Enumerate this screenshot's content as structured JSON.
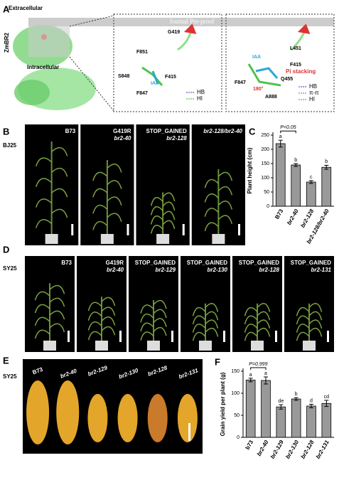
{
  "panel_a": {
    "label": "A",
    "protein": "ZmBR2",
    "extracellular": "Extracellular",
    "intracellular": "Intracellular",
    "watermark": "Journal Pre-proof",
    "left_box": {
      "residues": [
        "G419",
        "F851",
        "S848",
        "F415",
        "F847"
      ],
      "ligand": "IAA",
      "legend": [
        "HB",
        "HI"
      ]
    },
    "right_box": {
      "residues": [
        "L451",
        "F415",
        "Q455",
        "F847",
        "A888"
      ],
      "ligand": "IAA",
      "interaction": "Pi stacking",
      "angle": "180°",
      "legend": [
        "HB",
        "π-π",
        "HI"
      ]
    }
  },
  "panel_b": {
    "label": "B",
    "site": "BJ25",
    "images": [
      [
        "B73"
      ],
      [
        "G419R",
        "br2-40"
      ],
      [
        "STOP_GAINED",
        "br2-128"
      ],
      [
        "br2-128/br2-40"
      ]
    ]
  },
  "panel_d": {
    "label": "D",
    "site": "SY25",
    "images": [
      [
        "B73"
      ],
      [
        "G419R",
        "br2-40"
      ],
      [
        "STOP_GAINED",
        "br2-129"
      ],
      [
        "STOP_GAINED",
        "br2-130"
      ],
      [
        "STOP_GAINED",
        "br2-128"
      ],
      [
        "STOP_GAINED",
        "br2-131"
      ]
    ]
  },
  "panel_e": {
    "label": "E",
    "site": "SY25",
    "ears": [
      "B73",
      "br2-40",
      "br2-129",
      "br2-130",
      "br2-128",
      "br2-131"
    ]
  },
  "chart_data": [
    {
      "type": "bar",
      "panel_label": "C",
      "ylabel": "Plant height (cm)",
      "categories": [
        "B73",
        "br2-40",
        "br2-128",
        "br2-128/br2-40"
      ],
      "values": [
        220,
        145,
        85,
        137
      ],
      "errors": [
        12,
        5,
        5,
        7
      ],
      "letters": [
        "a",
        "b",
        "c",
        "b"
      ],
      "annotation": "P<0.05",
      "color": "#999999",
      "ylim": [
        0,
        250
      ],
      "yticks": [
        0,
        50,
        100,
        150,
        200,
        250
      ]
    },
    {
      "type": "bar",
      "panel_label": "F",
      "ylabel": "Grain yield per plant (g)",
      "categories": [
        "b73",
        "br2-40",
        "br2-129",
        "br2-130",
        "br2-128",
        "br2-131"
      ],
      "values": [
        130,
        129,
        69,
        87,
        71,
        77
      ],
      "errors": [
        4,
        8,
        5,
        3,
        4,
        7
      ],
      "letters": [
        "a",
        "a",
        "de",
        "b",
        "d",
        "cd"
      ],
      "annotation": "P=0.999",
      "color": "#999999",
      "ylim": [
        0,
        150
      ],
      "yticks": [
        0,
        50,
        100,
        150
      ]
    }
  ]
}
